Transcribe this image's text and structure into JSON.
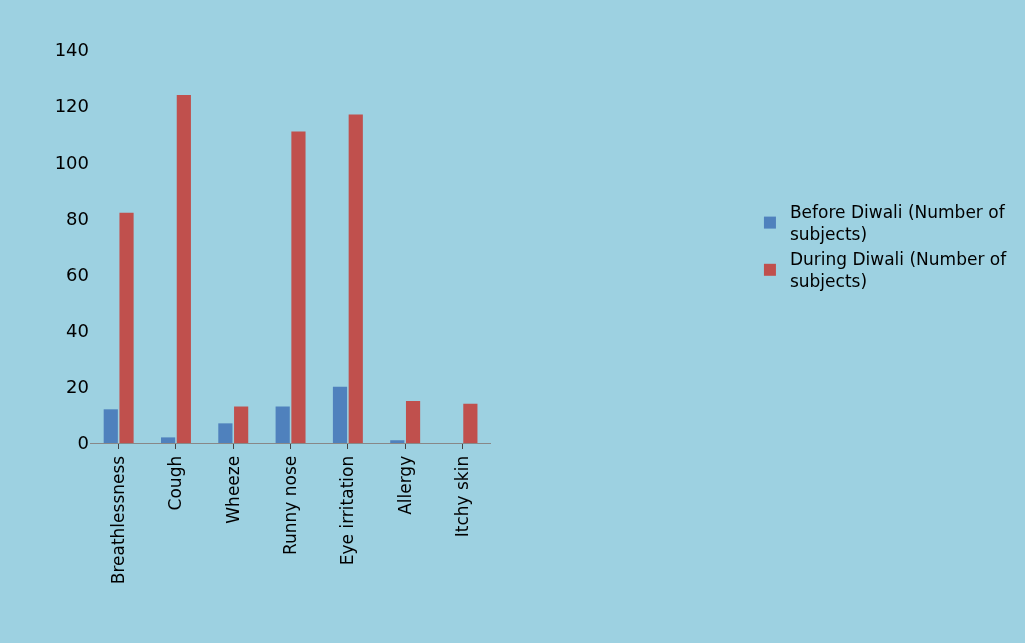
{
  "chart_data": {
    "type": "bar",
    "categories": [
      "Breathlessness",
      "Cough",
      "Wheeze",
      "Runny nose",
      "Eye irritation",
      "Allergy",
      "Itchy skin"
    ],
    "series": [
      {
        "name": "Before Diwali (Number of subjects)",
        "color": "#4f81bd",
        "values": [
          12,
          2,
          7,
          13,
          20,
          1,
          0
        ]
      },
      {
        "name": "During Diwali (Number of subjects)",
        "color": "#c0504d",
        "values": [
          82,
          124,
          13,
          111,
          117,
          15,
          14
        ]
      }
    ],
    "ylim": [
      0,
      140
    ],
    "yticks": [
      0,
      20,
      40,
      60,
      80,
      100,
      120,
      140
    ],
    "grid": false,
    "legend": "right"
  }
}
